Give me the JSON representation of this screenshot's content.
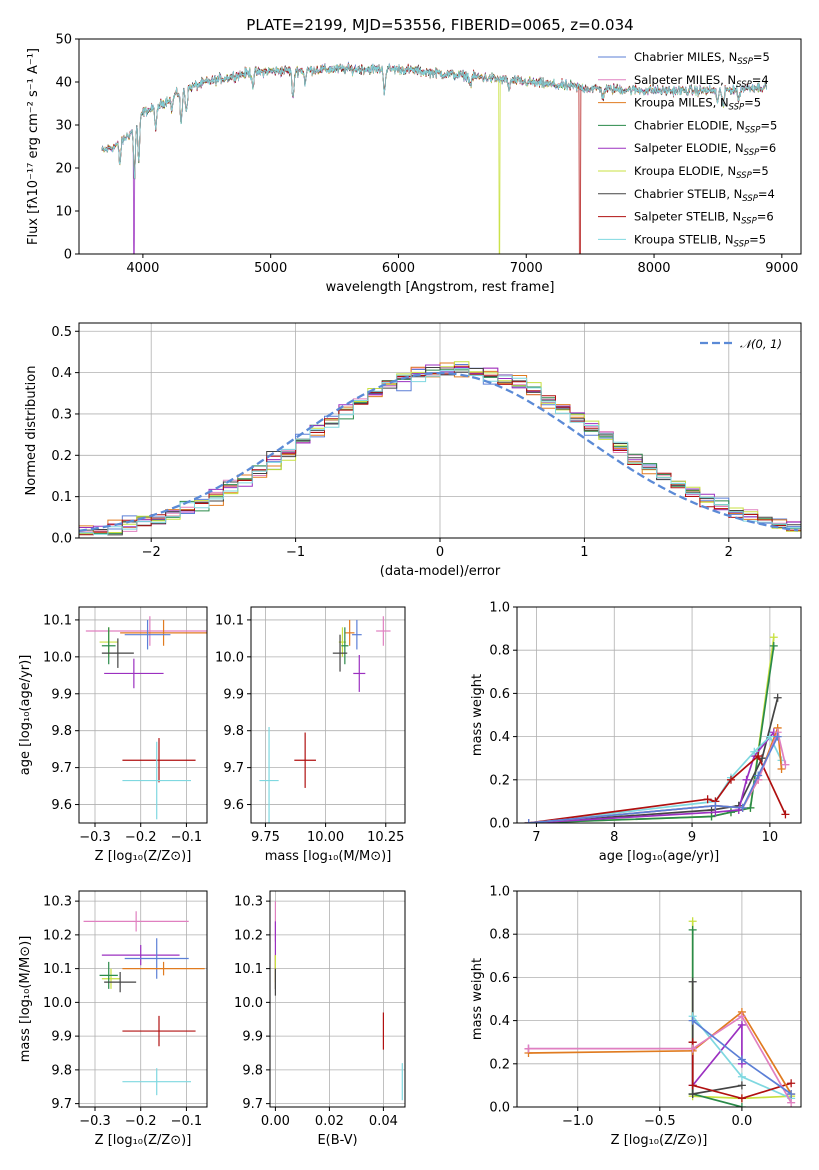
{
  "colors": {
    "chabrier_miles": "#5b7fd6",
    "salpeter_miles": "#e080c0",
    "kroupa_miles": "#e07b20",
    "chabrier_elodie": "#2a8a4a",
    "salpeter_elodie": "#9b30c0",
    "kroupa_elodie": "#c8e040",
    "chabrier_stelib": "#444444",
    "salpeter_stelib": "#b01010",
    "kroupa_stelib": "#7fd8e0",
    "normal": "#5b8ad6"
  },
  "chart_data": [
    {
      "id": "spectrum",
      "type": "line",
      "title": "PLATE=2199, MJD=53556, FIBERID=0065, z=0.034",
      "xlabel": "wavelength [Angstrom, rest frame]",
      "ylabel": "Flux [fλ10⁻¹⁷ erg cm⁻² s⁻¹ A⁻¹]",
      "xlim": [
        3500,
        9150
      ],
      "ylim": [
        0,
        50
      ],
      "xticks": [
        4000,
        5000,
        6000,
        7000,
        8000,
        9000
      ],
      "yticks": [
        0,
        10,
        20,
        30,
        40,
        50
      ],
      "grid": false,
      "legend_position": "top-right",
      "continuum": [
        [
          3680,
          24
        ],
        [
          3780,
          25
        ],
        [
          3900,
          28
        ],
        [
          4000,
          33
        ],
        [
          4100,
          34
        ],
        [
          4300,
          38
        ],
        [
          4500,
          40
        ],
        [
          4800,
          42
        ],
        [
          5000,
          42.5
        ],
        [
          5500,
          43
        ],
        [
          6000,
          43
        ],
        [
          6500,
          41.5
        ],
        [
          7000,
          40
        ],
        [
          7500,
          38.5
        ],
        [
          8000,
          38
        ],
        [
          8500,
          38
        ],
        [
          8880,
          39
        ]
      ],
      "absorption_lines": [
        [
          3820,
          5
        ],
        [
          3934,
          12
        ],
        [
          3968,
          10
        ],
        [
          4102,
          5
        ],
        [
          4227,
          3
        ],
        [
          4300,
          8
        ],
        [
          4340,
          5
        ],
        [
          4861,
          3
        ],
        [
          5175,
          7
        ],
        [
          5270,
          3
        ],
        [
          5890,
          5
        ],
        [
          6563,
          2
        ],
        [
          6867,
          2
        ],
        [
          7600,
          2
        ],
        [
          8498,
          3
        ],
        [
          8542,
          4
        ],
        [
          8662,
          3
        ]
      ],
      "model_dropouts": [
        [
          3930,
          "salpeter_elodie"
        ],
        [
          6790,
          "kroupa_elodie"
        ],
        [
          7420,
          "salpeter_stelib"
        ]
      ],
      "legend": [
        {
          "label": "Chabrier MILES, N",
          "sub": "SSP",
          "suffix": "=5",
          "color": "chabrier_miles"
        },
        {
          "label": "Salpeter MILES, N",
          "sub": "SSP",
          "suffix": "=4",
          "color": "salpeter_miles"
        },
        {
          "label": "Kroupa MILES, N",
          "sub": "SSP",
          "suffix": "=5",
          "color": "kroupa_miles"
        },
        {
          "label": "Chabrier ELODIE, N",
          "sub": "SSP",
          "suffix": "=5",
          "color": "chabrier_elodie"
        },
        {
          "label": "Salpeter ELODIE, N",
          "sub": "SSP",
          "suffix": "=6",
          "color": "salpeter_elodie"
        },
        {
          "label": "Kroupa ELODIE, N",
          "sub": "SSP",
          "suffix": "=5",
          "color": "kroupa_elodie"
        },
        {
          "label": "Chabrier STELIB, N",
          "sub": "SSP",
          "suffix": "=4",
          "color": "chabrier_stelib"
        },
        {
          "label": "Salpeter STELIB, N",
          "sub": "SSP",
          "suffix": "=6",
          "color": "salpeter_stelib"
        },
        {
          "label": "Kroupa STELIB, N",
          "sub": "SSP",
          "suffix": "=5",
          "color": "kroupa_stelib"
        }
      ]
    },
    {
      "id": "residuals",
      "type": "line",
      "xlabel": "(data-model)/error",
      "ylabel": "Normed distribution",
      "xlim": [
        -2.5,
        2.5
      ],
      "ylim": [
        0,
        0.52
      ],
      "xticks": [
        -2,
        -1,
        0,
        1,
        2
      ],
      "yticks": [
        0.0,
        0.1,
        0.2,
        0.3,
        0.4,
        0.5
      ],
      "grid": true,
      "bin_width": 0.1,
      "legend": [
        {
          "label": "𝒩(0, 1)",
          "color": "normal",
          "style": "dashed"
        }
      ],
      "legend_position": "top-right"
    },
    {
      "id": "age_vs_Z",
      "type": "scatter",
      "xlabel": "Z [log₁₀(Z/Z⊙)]",
      "ylabel": "age  [log₁₀(age/yr)]",
      "xlim": [
        -0.335,
        -0.055
      ],
      "ylim": [
        9.55,
        10.135
      ],
      "xticks": [
        -0.3,
        -0.2,
        -0.1
      ],
      "yticks": [
        9.6,
        9.7,
        9.8,
        9.9,
        10.0,
        10.1
      ],
      "grid": true,
      "points": [
        {
          "x": -0.18,
          "y": 10.07,
          "xerr": 0.14,
          "yerr": 0.04,
          "color": "salpeter_miles"
        },
        {
          "x": -0.15,
          "y": 10.065,
          "xerr": 0.095,
          "yerr": 0.035,
          "color": "kroupa_miles"
        },
        {
          "x": -0.185,
          "y": 10.06,
          "xerr": 0.05,
          "yerr": 0.04,
          "color": "chabrier_miles"
        },
        {
          "x": -0.27,
          "y": 10.04,
          "xerr": 0.02,
          "yerr": 0.04,
          "color": "kroupa_elodie"
        },
        {
          "x": -0.27,
          "y": 10.03,
          "xerr": 0.015,
          "yerr": 0.05,
          "color": "chabrier_elodie"
        },
        {
          "x": -0.25,
          "y": 10.01,
          "xerr": 0.035,
          "yerr": 0.04,
          "color": "chabrier_stelib"
        },
        {
          "x": -0.215,
          "y": 9.955,
          "xerr": 0.065,
          "yerr": 0.04,
          "color": "salpeter_elodie"
        },
        {
          "x": -0.16,
          "y": 9.72,
          "xerr": 0.08,
          "yerr": 0.06,
          "color": "salpeter_stelib"
        },
        {
          "x": -0.165,
          "y": 9.665,
          "xerr": 0.075,
          "yerr": 0.105,
          "color": "kroupa_stelib"
        }
      ]
    },
    {
      "id": "age_vs_mass",
      "type": "scatter",
      "xlabel": "mass [log₁₀(M/M⊙)]",
      "ylabel": "",
      "xlim": [
        9.69,
        10.33
      ],
      "ylim": [
        9.55,
        10.135
      ],
      "xticks": [
        9.75,
        10.0,
        10.25
      ],
      "yticks": [
        9.6,
        9.7,
        9.8,
        9.9,
        10.0,
        10.1
      ],
      "grid": true,
      "points": [
        {
          "x": 10.24,
          "y": 10.07,
          "xerr": 0.03,
          "yerr": 0.04,
          "color": "salpeter_miles"
        },
        {
          "x": 10.1,
          "y": 10.065,
          "xerr": 0.02,
          "yerr": 0.035,
          "color": "kroupa_miles"
        },
        {
          "x": 10.13,
          "y": 10.06,
          "xerr": 0.02,
          "yerr": 0.04,
          "color": "chabrier_miles"
        },
        {
          "x": 10.07,
          "y": 10.04,
          "xerr": 0.015,
          "yerr": 0.04,
          "color": "kroupa_elodie"
        },
        {
          "x": 10.08,
          "y": 10.03,
          "xerr": 0.015,
          "yerr": 0.05,
          "color": "chabrier_elodie"
        },
        {
          "x": 10.06,
          "y": 10.01,
          "xerr": 0.03,
          "yerr": 0.05,
          "color": "chabrier_stelib"
        },
        {
          "x": 10.14,
          "y": 9.955,
          "xerr": 0.025,
          "yerr": 0.05,
          "color": "salpeter_elodie"
        },
        {
          "x": 9.915,
          "y": 9.72,
          "xerr": 0.045,
          "yerr": 0.075,
          "color": "salpeter_stelib"
        },
        {
          "x": 9.765,
          "y": 9.665,
          "xerr": 0.04,
          "yerr": 0.145,
          "color": "kroupa_stelib"
        }
      ]
    },
    {
      "id": "weight_vs_age",
      "type": "line",
      "xlabel": "age  [log₁₀(age/yr)]",
      "ylabel": "mass weight",
      "xlim": [
        6.75,
        10.4
      ],
      "ylim": [
        0,
        1
      ],
      "xticks": [
        7,
        8,
        9,
        10
      ],
      "yticks": [
        0.0,
        0.2,
        0.4,
        0.6,
        0.8,
        1.0
      ],
      "grid": true,
      "series": [
        {
          "color": "kroupa_elodie",
          "x": [
            6.9,
            9.25,
            9.5,
            9.75,
            10.05
          ],
          "y": [
            0.0,
            0.03,
            0.05,
            0.07,
            0.86
          ]
        },
        {
          "color": "chabrier_elodie",
          "x": [
            6.9,
            9.25,
            9.5,
            9.75,
            10.05
          ],
          "y": [
            0.0,
            0.03,
            0.05,
            0.07,
            0.82
          ]
        },
        {
          "color": "chabrier_stelib",
          "x": [
            6.9,
            9.25,
            9.6,
            9.9,
            10.1
          ],
          "y": [
            0.0,
            0.06,
            0.08,
            0.3,
            0.58
          ]
        },
        {
          "color": "salpeter_elodie",
          "x": [
            6.9,
            9.3,
            9.6,
            9.7,
            9.8,
            10.05
          ],
          "y": [
            0.0,
            0.05,
            0.06,
            0.2,
            0.31,
            0.42
          ]
        },
        {
          "color": "kroupa_stelib",
          "x": [
            6.9,
            9.3,
            9.5,
            9.8,
            10.0,
            10.15
          ],
          "y": [
            0.0,
            0.1,
            0.21,
            0.33,
            0.4,
            0.29
          ]
        },
        {
          "color": "salpeter_stelib",
          "x": [
            6.9,
            9.2,
            9.3,
            9.5,
            9.85,
            10.2
          ],
          "y": [
            0.0,
            0.11,
            0.1,
            0.2,
            0.31,
            0.04
          ]
        },
        {
          "color": "kroupa_miles",
          "x": [
            6.9,
            9.3,
            9.65,
            9.85,
            10.1,
            10.15
          ],
          "y": [
            0.0,
            0.08,
            0.07,
            0.2,
            0.44,
            0.25
          ]
        },
        {
          "color": "salpeter_miles",
          "x": [
            6.9,
            9.3,
            9.65,
            9.85,
            10.1,
            10.2
          ],
          "y": [
            0.0,
            0.08,
            0.07,
            0.2,
            0.42,
            0.27
          ]
        },
        {
          "color": "chabrier_miles",
          "x": [
            6.9,
            9.3,
            9.65,
            9.85,
            10.1
          ],
          "y": [
            0.0,
            0.08,
            0.07,
            0.22,
            0.4
          ]
        }
      ]
    },
    {
      "id": "mass_vs_Z",
      "type": "scatter",
      "xlabel": "Z [log₁₀(Z/Z⊙)]",
      "ylabel": "mass [log₁₀(M/M⊙)]",
      "xlim": [
        -0.335,
        -0.055
      ],
      "ylim": [
        9.69,
        10.33
      ],
      "xticks": [
        -0.3,
        -0.2,
        -0.1
      ],
      "yticks": [
        9.7,
        9.8,
        9.9,
        10.0,
        10.1,
        10.2,
        10.3
      ],
      "grid": true,
      "points": [
        {
          "x": -0.21,
          "y": 10.24,
          "xerr": 0.115,
          "yerr": 0.03,
          "color": "salpeter_miles"
        },
        {
          "x": -0.2,
          "y": 10.14,
          "xerr": 0.085,
          "yerr": 0.03,
          "color": "salpeter_elodie"
        },
        {
          "x": -0.165,
          "y": 10.13,
          "xerr": 0.07,
          "yerr": 0.06,
          "color": "chabrier_miles"
        },
        {
          "x": -0.15,
          "y": 10.1,
          "xerr": 0.09,
          "yerr": 0.02,
          "color": "kroupa_miles"
        },
        {
          "x": -0.265,
          "y": 10.07,
          "xerr": 0.02,
          "yerr": 0.03,
          "color": "kroupa_elodie"
        },
        {
          "x": -0.27,
          "y": 10.08,
          "xerr": 0.02,
          "yerr": 0.04,
          "color": "chabrier_elodie"
        },
        {
          "x": -0.245,
          "y": 10.06,
          "xerr": 0.035,
          "yerr": 0.03,
          "color": "chabrier_stelib"
        },
        {
          "x": -0.16,
          "y": 9.915,
          "xerr": 0.08,
          "yerr": 0.045,
          "color": "salpeter_stelib"
        },
        {
          "x": -0.165,
          "y": 9.765,
          "xerr": 0.075,
          "yerr": 0.04,
          "color": "kroupa_stelib"
        }
      ]
    },
    {
      "id": "mass_vs_ebv",
      "type": "scatter",
      "xlabel": "E(B-V)",
      "ylabel": "",
      "xlim": [
        -0.002,
        0.048
      ],
      "ylim": [
        9.69,
        10.33
      ],
      "xticks": [
        0.0,
        0.02,
        0.04
      ],
      "yticks": [
        9.7,
        9.8,
        9.9,
        10.0,
        10.1,
        10.2,
        10.3
      ],
      "grid": true,
      "points": [
        {
          "x": 0.0,
          "y": 10.24,
          "xerr": 0.0,
          "yerr": 0.06,
          "color": "salpeter_miles"
        },
        {
          "x": 0.0,
          "y": 10.14,
          "xerr": 0.0,
          "yerr": 0.1,
          "color": "salpeter_elodie"
        },
        {
          "x": 0.0,
          "y": 10.1,
          "xerr": 0.0,
          "yerr": 0.04,
          "color": "kroupa_miles"
        },
        {
          "x": 0.0,
          "y": 10.09,
          "xerr": 0.0,
          "yerr": 0.05,
          "color": "kroupa_elodie"
        },
        {
          "x": 0.0,
          "y": 10.06,
          "xerr": 0.0,
          "yerr": 0.04,
          "color": "chabrier_stelib"
        },
        {
          "x": 0.04,
          "y": 9.915,
          "xerr": 0.0,
          "yerr": 0.055,
          "color": "salpeter_stelib"
        },
        {
          "x": 0.047,
          "y": 9.765,
          "xerr": 0.0,
          "yerr": 0.055,
          "color": "kroupa_stelib"
        }
      ]
    },
    {
      "id": "weight_vs_Z",
      "type": "line",
      "xlabel": "Z [log₁₀(Z/Z⊙)]",
      "ylabel": "mass weight",
      "xlim": [
        -1.37,
        0.36
      ],
      "ylim": [
        0,
        1
      ],
      "xticks": [
        -1.0,
        -0.5,
        0.0
      ],
      "yticks": [
        0.0,
        0.2,
        0.4,
        0.6,
        0.8,
        1.0
      ],
      "grid": true,
      "series": [
        {
          "color": "kroupa_elodie",
          "x": [
            -0.3,
            -0.3,
            0.0,
            0.3
          ],
          "y": [
            0.86,
            0.05,
            0.04,
            0.05
          ]
        },
        {
          "color": "chabrier_elodie",
          "x": [
            -0.3,
            -0.3,
            0.0
          ],
          "y": [
            0.82,
            0.06,
            0.0
          ]
        },
        {
          "color": "chabrier_stelib",
          "x": [
            -0.3,
            -0.3,
            -0.3,
            0.0
          ],
          "y": [
            0.58,
            0.3,
            0.06,
            0.1
          ]
        },
        {
          "color": "salpeter_elodie",
          "x": [
            -1.3,
            -0.3,
            -0.3,
            0.0,
            0.0
          ],
          "y": [
            0.27,
            0.27,
            0.1,
            0.38,
            0.2
          ]
        },
        {
          "color": "kroupa_stelib",
          "x": [
            -0.3,
            0.0,
            0.3
          ],
          "y": [
            0.42,
            0.14,
            0.04
          ]
        },
        {
          "color": "salpeter_stelib",
          "x": [
            -0.3,
            -0.3,
            0.0,
            0.3
          ],
          "y": [
            0.3,
            0.1,
            0.04,
            0.11
          ]
        },
        {
          "color": "kroupa_miles",
          "x": [
            -1.3,
            -0.3,
            0.0,
            0.3
          ],
          "y": [
            0.25,
            0.26,
            0.44,
            0.06
          ]
        },
        {
          "color": "salpeter_miles",
          "x": [
            -1.3,
            -0.3,
            0.0,
            0.3
          ],
          "y": [
            0.27,
            0.27,
            0.42,
            0.02
          ]
        },
        {
          "color": "chabrier_miles",
          "x": [
            -0.3,
            0.0,
            0.3
          ],
          "y": [
            0.4,
            0.22,
            0.06
          ]
        }
      ]
    }
  ]
}
